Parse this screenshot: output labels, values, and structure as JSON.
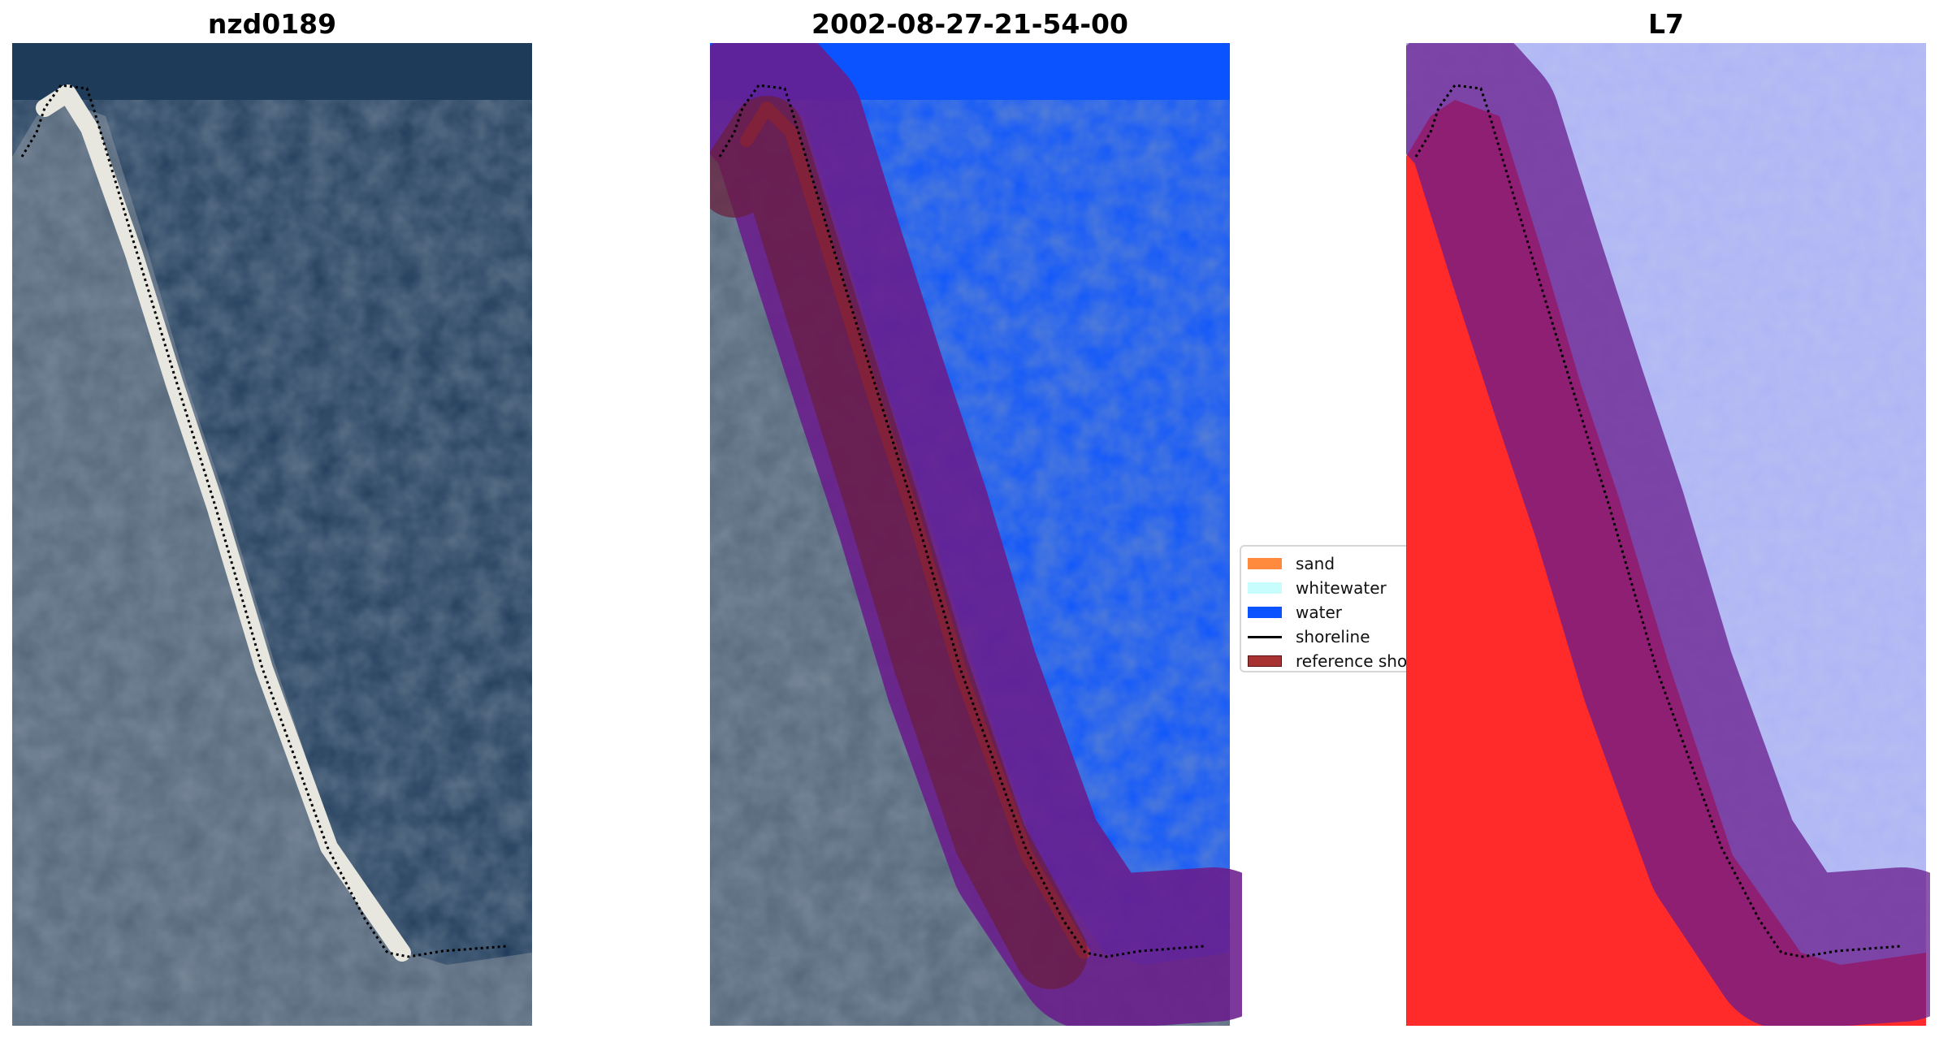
{
  "panels": [
    {
      "title": "nzd0189"
    },
    {
      "title": "2002-08-27-21-54-00"
    },
    {
      "title": "L7"
    }
  ],
  "legend": {
    "items": [
      {
        "label": "sand",
        "color": "#ff8a3d"
      },
      {
        "label": "whitewater",
        "color": "#c8fdfd"
      },
      {
        "label": "water",
        "color": "#0a53ff"
      },
      {
        "label": "shoreline",
        "color": "#000000"
      },
      {
        "label": "reference sho",
        "color": "#a83232"
      }
    ]
  },
  "colors": {
    "ocean": "#1f3b5a",
    "land": "#55667a",
    "beach": "#e7e6df",
    "water_class": "#0a53ff",
    "buffer": "#6a1c8c",
    "reference_band": "#a23a40",
    "mndwi_land": "#ff2a2a",
    "mndwi_water": "#b8bff2"
  }
}
